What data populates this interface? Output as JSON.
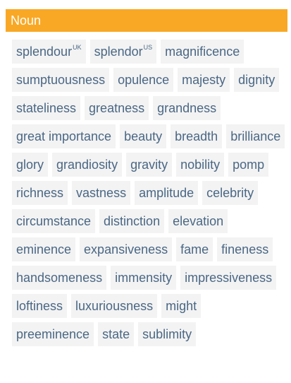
{
  "section": {
    "title": "Noun"
  },
  "words": [
    {
      "text": "splendour",
      "sup": "UK"
    },
    {
      "text": "splendor",
      "sup": "US"
    },
    {
      "text": "magnificence"
    },
    {
      "text": "sumptuousness"
    },
    {
      "text": "opulence"
    },
    {
      "text": "majesty"
    },
    {
      "text": "dignity"
    },
    {
      "text": "stateliness"
    },
    {
      "text": "greatness"
    },
    {
      "text": "grandness"
    },
    {
      "text": "great importance"
    },
    {
      "text": "beauty"
    },
    {
      "text": "breadth"
    },
    {
      "text": "brilliance"
    },
    {
      "text": "glory"
    },
    {
      "text": "grandiosity"
    },
    {
      "text": "gravity"
    },
    {
      "text": "nobility"
    },
    {
      "text": "pomp"
    },
    {
      "text": "richness"
    },
    {
      "text": "vastness"
    },
    {
      "text": "amplitude"
    },
    {
      "text": "celebrity"
    },
    {
      "text": "circumstance"
    },
    {
      "text": "distinction"
    },
    {
      "text": "elevation"
    },
    {
      "text": "eminence"
    },
    {
      "text": "expansiveness"
    },
    {
      "text": "fame"
    },
    {
      "text": "fineness"
    },
    {
      "text": "handsomeness"
    },
    {
      "text": "immensity"
    },
    {
      "text": "impressiveness"
    },
    {
      "text": "loftiness"
    },
    {
      "text": "luxuriousness"
    },
    {
      "text": "might"
    },
    {
      "text": "preeminence"
    },
    {
      "text": "state"
    },
    {
      "text": "sublimity"
    }
  ]
}
